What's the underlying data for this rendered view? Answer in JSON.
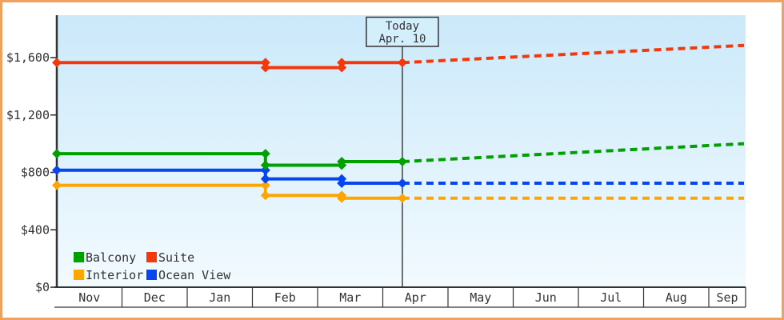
{
  "frame": {
    "border_color": "#F1A15E",
    "background": "#FFFFFF"
  },
  "chart_data": {
    "type": "line",
    "title": "",
    "x_unit": "months_from_nov_1",
    "x_months": [
      "Nov",
      "Dec",
      "Jan",
      "Feb",
      "Mar",
      "Apr",
      "May",
      "Jun",
      "Jul",
      "Aug",
      "Sep"
    ],
    "y_ticks": [
      {
        "label": "$0",
        "value": 0
      },
      {
        "label": "$400",
        "value": 400
      },
      {
        "label": "$800",
        "value": 800
      },
      {
        "label": "$1,200",
        "value": 1200
      },
      {
        "label": "$1,600",
        "value": 1600
      }
    ],
    "ylim": [
      0,
      1895
    ],
    "xlim": [
      0,
      10.54
    ],
    "grid": false,
    "legend_position": "bottom-left",
    "background_gradient": {
      "top": "#CBE9FA",
      "bottom": "#F2FAFE"
    },
    "axis_color": "#333333",
    "text_color": "#333333",
    "today": {
      "line1": "Today",
      "line2": "Apr. 10",
      "x": 5.3
    },
    "series": [
      {
        "name": "Balcony",
        "color": "#00A000",
        "points": [
          {
            "x": 0,
            "value": 930
          },
          {
            "x": 3.2,
            "value": 850
          },
          {
            "x": 4.37,
            "value": 875
          }
        ],
        "forecast_value": 1000
      },
      {
        "name": "Suite",
        "color": "#F5380C",
        "points": [
          {
            "x": 0,
            "value": 1565
          },
          {
            "x": 3.2,
            "value": 1530
          },
          {
            "x": 4.37,
            "value": 1565
          }
        ],
        "forecast_value": 1685
      },
      {
        "name": "Interior",
        "color": "#FFA502",
        "points": [
          {
            "x": 0,
            "value": 710
          },
          {
            "x": 3.2,
            "value": 640
          },
          {
            "x": 4.37,
            "value": 620
          }
        ],
        "forecast_value": 620
      },
      {
        "name": "Ocean View",
        "color": "#0645F0",
        "points": [
          {
            "x": 0,
            "value": 815
          },
          {
            "x": 3.2,
            "value": 755
          },
          {
            "x": 4.37,
            "value": 725
          }
        ],
        "forecast_value": 725
      }
    ],
    "draw_order": [
      "Interior",
      "Ocean View",
      "Balcony",
      "Suite"
    ],
    "legend": {
      "rows": [
        [
          "Balcony",
          "Suite"
        ],
        [
          "Interior",
          "Ocean View"
        ]
      ]
    }
  }
}
